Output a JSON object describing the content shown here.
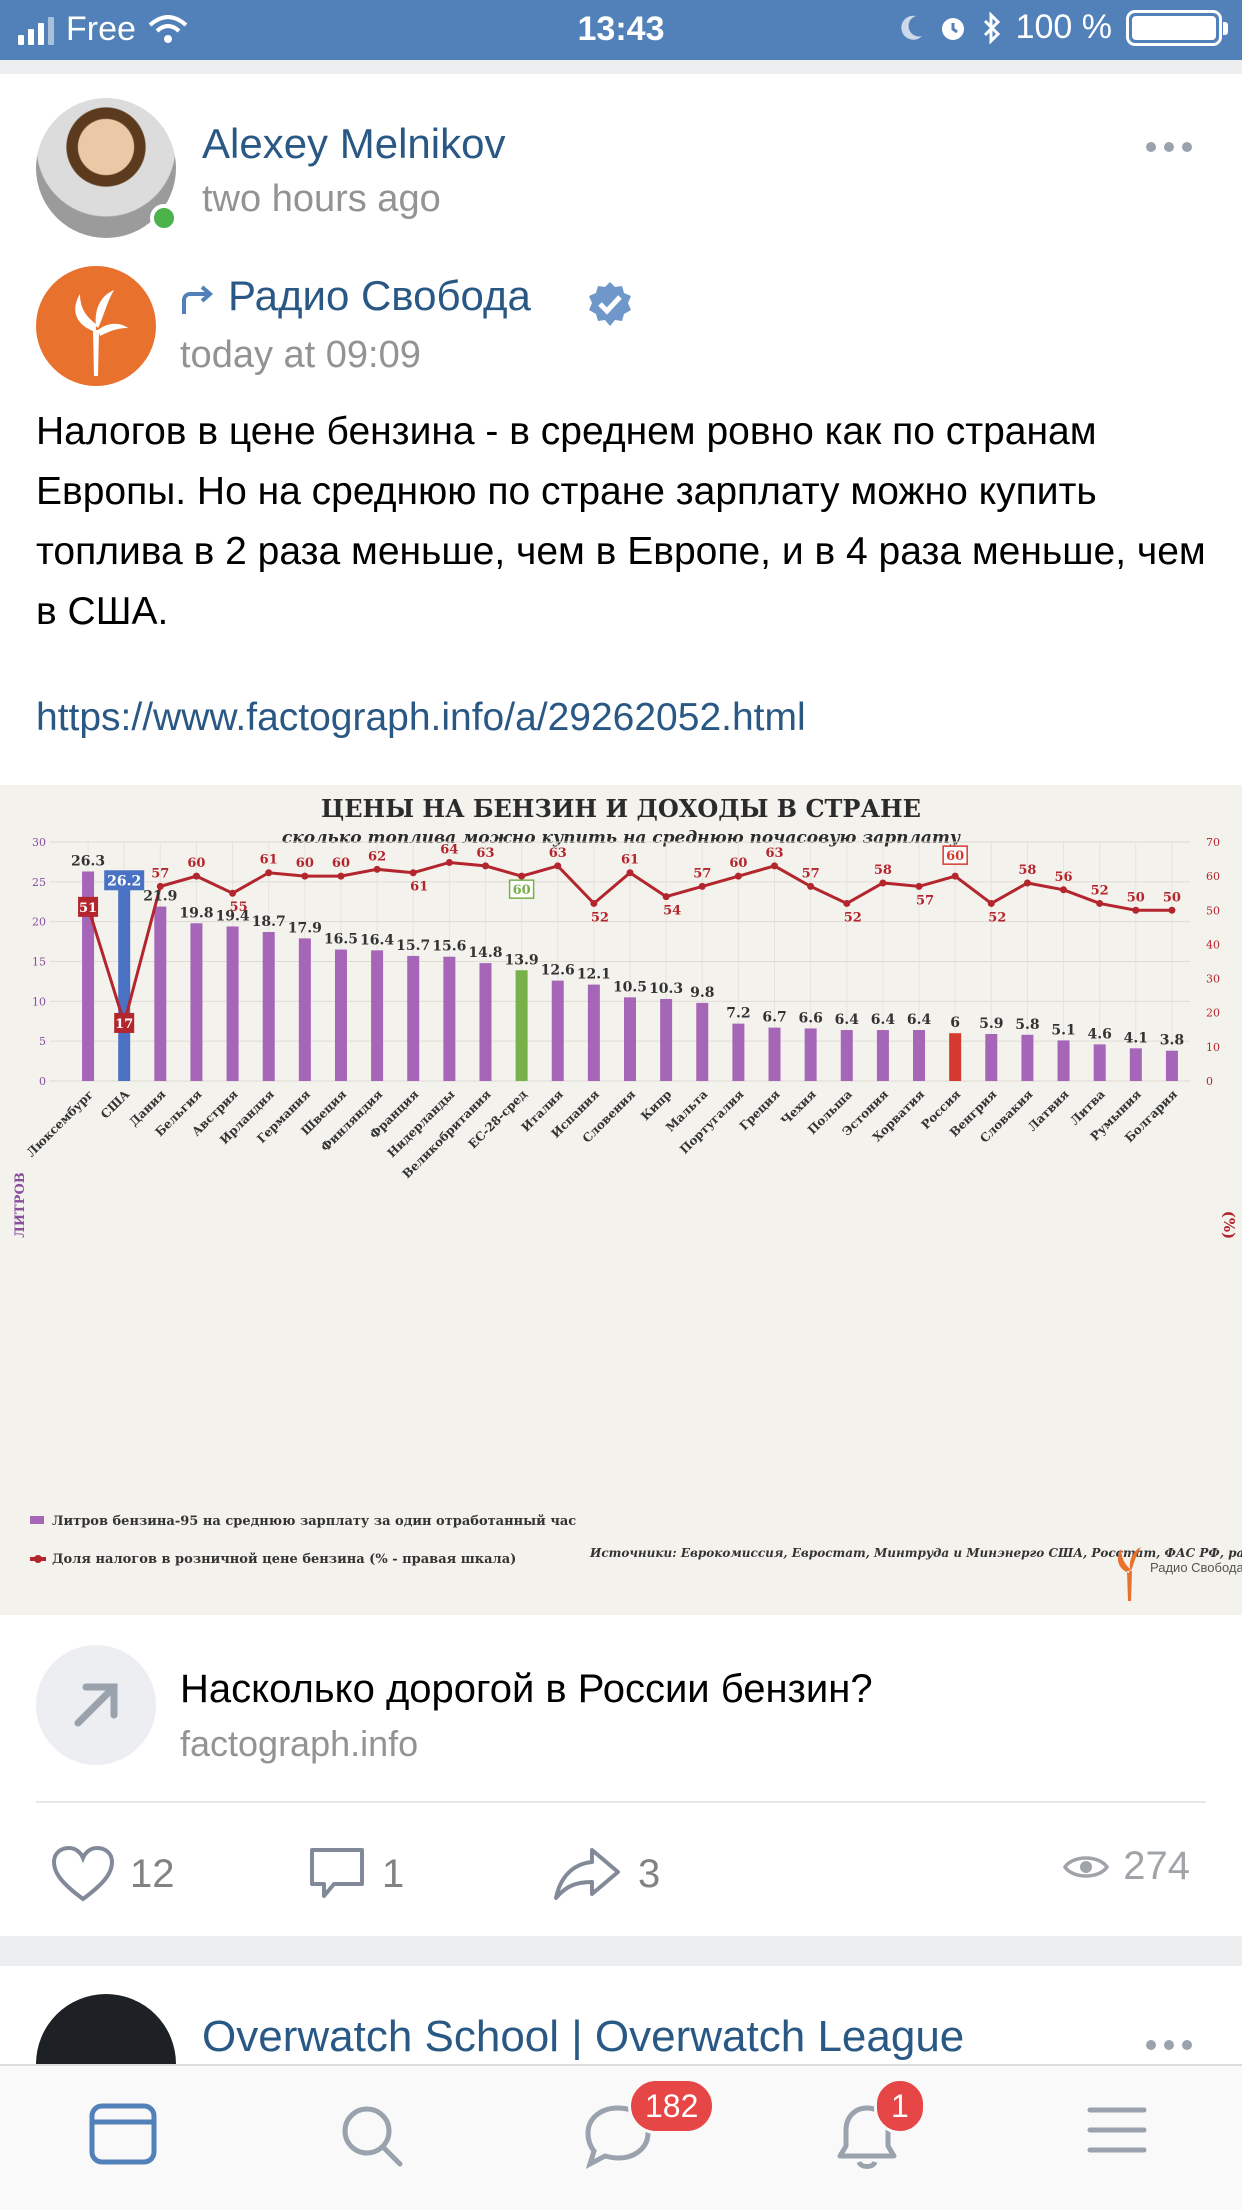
{
  "status_bar": {
    "carrier": "Free",
    "time": "13:43",
    "battery": "100 %"
  },
  "post": {
    "author": "Alexey Melnikov",
    "time": "two hours ago",
    "repost": {
      "source": "Радио Свобода",
      "time": "today at 09:09"
    },
    "text": "Налогов в цене бензина - в среднем ровно как по странам Европы. Но на среднюю по стране зарплату можно купить топлива в 2 раза меньше, чем в Европе, и в 4 раза меньше, чем в США.",
    "link": "https://www.factograph.info/a/29262052.html",
    "link_attachment": {
      "title": "Насколько дорогой в России бензин?",
      "domain": "factograph.info"
    },
    "actions": {
      "likes": "12",
      "comments": "1",
      "shares": "3",
      "views": "274"
    }
  },
  "next_post": {
    "author": "Overwatch School | Overwatch League"
  },
  "tabbar": {
    "messages_badge": "182",
    "notifications_badge": "1",
    "accent": "#5181b8",
    "badge_color": "#e64646"
  },
  "chart_data": {
    "type": "bar",
    "title": "ЦЕНЫ НА БЕНЗИН И ДОХОДЫ В СТРАНЕ",
    "subtitle": "сколько топлива можно купить на среднюю почасовую зарплату",
    "ylabel": "ЛИТРОВ",
    "y2label": "(%)",
    "ylim": [
      0,
      30
    ],
    "y2lim": [
      0,
      70
    ],
    "yticks": [
      "0",
      "5",
      "10",
      "15",
      "20",
      "25",
      "30"
    ],
    "y2ticks": [
      "0",
      "10",
      "20",
      "30",
      "40",
      "50",
      "60",
      "70"
    ],
    "categories": [
      "Люксембург",
      "США",
      "Дания",
      "Бельгия",
      "Австрия",
      "Ирландия",
      "Германия",
      "Швеция",
      "Финляндия",
      "Франция",
      "Нидерланды",
      "Великобритания",
      "ЕС-28-сред",
      "Италия",
      "Испания",
      "Словения",
      "Кипр",
      "Мальта",
      "Португалия",
      "Греция",
      "Чехия",
      "Польша",
      "Эстония",
      "Хорватия",
      "Россия",
      "Венгрия",
      "Словакия",
      "Латвия",
      "Литва",
      "Румыния",
      "Болгария"
    ],
    "series": [
      {
        "name": "Литров бензина-95 на среднюю зарплату за один отработанный час",
        "axis": "left",
        "values": [
          26.3,
          26.2,
          21.9,
          19.8,
          19.4,
          18.7,
          17.9,
          16.5,
          16.4,
          15.7,
          15.6,
          14.8,
          13.9,
          12.6,
          12.1,
          10.5,
          10.3,
          9.8,
          7.2,
          6.7,
          6.6,
          6.4,
          6.4,
          6.4,
          6,
          5.9,
          5.8,
          5.1,
          4.6,
          4.1,
          3.8
        ],
        "labels": [
          "26.3",
          "26.2",
          "21.9",
          "19.8",
          "19.4",
          "18.7",
          "17.9",
          "16.5",
          "16.4",
          "15.7",
          "15.6",
          "14.8",
          "13.9",
          "12.6",
          "12.1",
          "10.5",
          "10.3",
          "9.8",
          "7.2",
          "6.7",
          "6.6",
          "6.4",
          "6.4",
          "6.4",
          "6",
          "5.9",
          "5.8",
          "5.1",
          "4.6",
          "4.1",
          "3.8"
        ]
      },
      {
        "name": "Доля налогов в розничной цене бензина (% - правая шкала)",
        "axis": "right",
        "type": "line",
        "values": [
          51,
          17,
          57,
          60,
          55,
          61,
          60,
          60,
          62,
          61,
          64,
          63,
          60,
          63,
          52,
          61,
          54,
          57,
          60,
          63,
          57,
          52,
          58,
          57,
          60,
          52,
          58,
          56,
          52,
          50,
          50
        ],
        "labels": [
          "51",
          "17",
          "57",
          "60",
          "55",
          "61",
          "60",
          "60",
          "62",
          "61",
          "64",
          "63",
          "60",
          "63",
          "52",
          "61",
          "54",
          "57",
          "60",
          "63",
          "57",
          "52",
          "58",
          "57",
          "60",
          "52",
          "58",
          "56",
          "52",
          "50",
          "50"
        ]
      }
    ],
    "legend": [
      "Литров бензина-95 на среднюю зарплату за один отработанный час",
      "Доля налогов в розничной цене бензина (% - правая шкала)"
    ],
    "legend_placement": "bottom-left",
    "source": "Источники: Еврокомиссия, Евростат, Минтруда и Минэнерго США, Росстат, ФАС РФ, расчеты РС",
    "logo_text": "Радио Свобода",
    "colors": {
      "bars": "#a566b8",
      "usa": "#4a72c4",
      "eu": "#78b04a",
      "russia": "#d63a2f",
      "line": "#b3262d"
    }
  }
}
